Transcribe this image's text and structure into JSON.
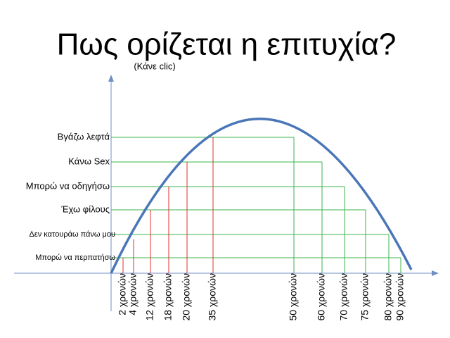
{
  "header": {
    "title": "Πως ορίζεται η επιτυχία?",
    "subtitle": "(Κάνε clic)"
  },
  "levels": [
    "Βγάζω λεφτά",
    "Κάνω Sex",
    "Μπορώ να οδηγήσω",
    "Έχω φίλους",
    "Δεν κατουράω πάνω μου",
    "Μπορώ να περπατήσω"
  ],
  "rising_ages": [
    "2 χρονών",
    "4 χρονών",
    "12 χρονών",
    "18 χρονών",
    "20 χρονών",
    "35 χρονών"
  ],
  "falling_ages": [
    "50 χρονών",
    "60 χρονών",
    "70 χρονών",
    "75 χρονών",
    "80 χρονών",
    "90 χρονών"
  ]
}
